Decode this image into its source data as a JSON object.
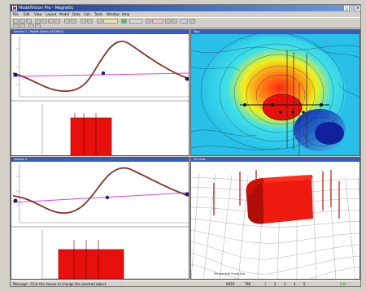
{
  "window": {
    "title": "ModelVision Pro - Magnetic",
    "min_label": "_",
    "max_label": "□",
    "close_label": "×"
  },
  "menu": [
    {
      "id": "file",
      "label": "File"
    },
    {
      "id": "edit",
      "label": "Edit"
    },
    {
      "id": "view",
      "label": "View"
    },
    {
      "id": "layout",
      "label": "Layout"
    },
    {
      "id": "model",
      "label": "Model"
    },
    {
      "id": "data",
      "label": "Data"
    },
    {
      "id": "calc",
      "label": "Calc"
    },
    {
      "id": "tools",
      "label": "Tools"
    },
    {
      "id": "window",
      "label": "Window"
    },
    {
      "id": "help",
      "label": "Help"
    }
  ],
  "panes": {
    "top_left_title": "Section 1 - Profile (North 6420800)",
    "top_right_title": "Map",
    "bottom_left_title": "Section 2",
    "bottom_right_title": "3D View",
    "view3d_label": "Perspective Projection"
  },
  "status": {
    "message": "Message : Click the mouse to change the selected object",
    "coords": "6925",
    "fields": [
      "TMI",
      "1",
      "2",
      "3",
      "4",
      "5"
    ],
    "mode": "Edit"
  },
  "colors": {
    "accent": "#3a5db8",
    "body": "#e8100c",
    "observed": "#6b3226",
    "calculated": "#d02a2a",
    "regional": "#e040e0"
  }
}
